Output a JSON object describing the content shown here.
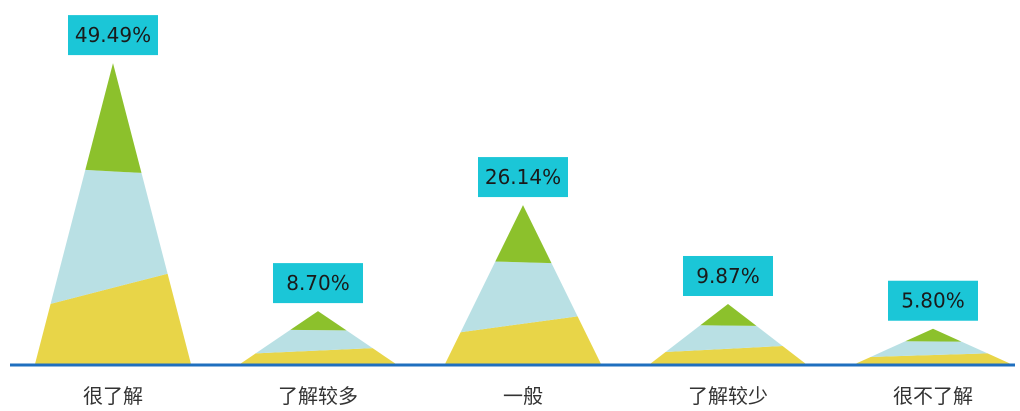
{
  "chart_data": {
    "type": "bar",
    "categories": [
      "很了解",
      "了解较多",
      "一般",
      "了解较少",
      "很不了解"
    ],
    "values": [
      49.49,
      8.7,
      26.14,
      9.87,
      5.8
    ],
    "data_labels": [
      "49.49%",
      "8.70%",
      "26.14%",
      "9.87%",
      "5.80%"
    ],
    "title": "",
    "xlabel": "",
    "ylabel": "",
    "ylim": [
      0,
      50
    ],
    "grid": false,
    "legend": "none"
  },
  "colors": {
    "band_bottom": "#e8d548",
    "band_middle": "#b9e0e4",
    "band_top": "#8cc12c",
    "label_bg": "#1bc6d7",
    "axis": "#1f6fbf"
  }
}
